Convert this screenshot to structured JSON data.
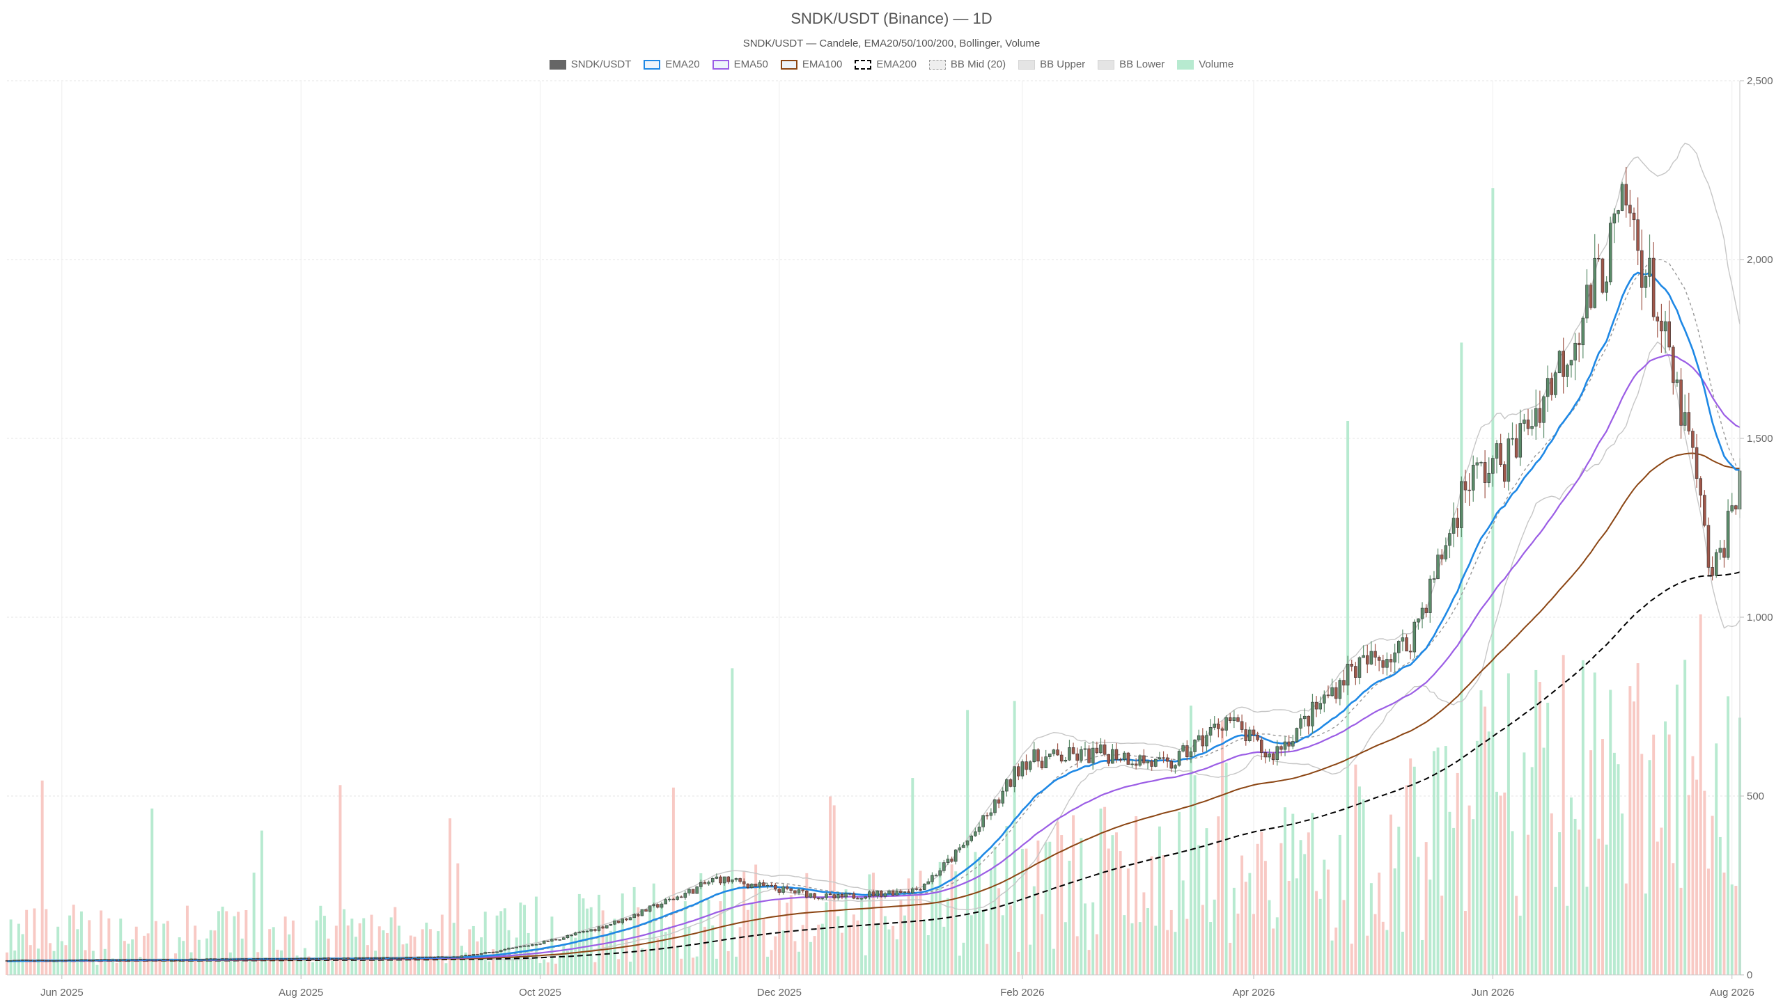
{
  "chart_data": {
    "type": "candlestick",
    "title": "SNDK/USDT (Binance) — 1D",
    "subtitle": "SNDK/USDT — Candele, EMA20/50/100/200, Bollinger, Volume",
    "legend": [
      {
        "label": "SNDK/USDT",
        "color": "#666666",
        "style": "solid-fill"
      },
      {
        "label": "EMA20",
        "color": "#1e88e5",
        "style": "line"
      },
      {
        "label": "EMA50",
        "color": "#9b5de5",
        "style": "line"
      },
      {
        "label": "EMA100",
        "color": "#8b4513",
        "style": "line"
      },
      {
        "label": "EMA200",
        "color": "#000000",
        "style": "dashed"
      },
      {
        "label": "BB Mid (20)",
        "color": "#999999",
        "style": "dotted"
      },
      {
        "label": "BB Upper",
        "color": "#bbbbbb",
        "style": "band"
      },
      {
        "label": "BB Lower",
        "color": "#bbbbbb",
        "style": "band"
      },
      {
        "label": "Volume",
        "color": "#b7ead0",
        "style": "fill"
      }
    ],
    "legend_placement": "top-center",
    "grid": true,
    "x_range": [
      "2025-05-18",
      "2026-08-03"
    ],
    "x_ticks": [
      {
        "date": "2025-06-01",
        "label": "Jun 2025"
      },
      {
        "date": "2025-08-01",
        "label": "Aug 2025"
      },
      {
        "date": "2025-10-01",
        "label": "Oct 2025"
      },
      {
        "date": "2025-12-01",
        "label": "Dec 2025"
      },
      {
        "date": "2026-02-01",
        "label": "Feb 2026"
      },
      {
        "date": "2026-04-01",
        "label": "Apr 2026"
      },
      {
        "date": "2026-06-01",
        "label": "Jun 2026"
      },
      {
        "date": "2026-08-01",
        "label": "Aug 2026"
      }
    ],
    "y_axis": {
      "position": "right",
      "ylim": [
        0,
        2500
      ],
      "ticks": [
        0,
        500,
        1000,
        1500,
        2000,
        2500
      ],
      "tick_labels": [
        "0",
        "500",
        "1,000",
        "1,500",
        "2,000",
        "2,500"
      ]
    },
    "colors": {
      "up": "#5b8c6a",
      "down": "#a0574a",
      "volume_up": "#b7ead0",
      "volume_down": "#f8c9c4",
      "ema20": "#1e88e5",
      "ema50": "#9b5de5",
      "ema100": "#8b4513",
      "ema200": "#000000",
      "bb_mid": "#999999",
      "bb_band": "#c6c6c6"
    },
    "price_keypoints": [
      {
        "date": "2025-05-18",
        "close": 40
      },
      {
        "date": "2025-08-01",
        "close": 45
      },
      {
        "date": "2025-09-10",
        "close": 50
      },
      {
        "date": "2025-10-01",
        "close": 90
      },
      {
        "date": "2025-11-01",
        "close": 200
      },
      {
        "date": "2025-11-15",
        "close": 270
      },
      {
        "date": "2025-12-15",
        "close": 215
      },
      {
        "date": "2026-01-05",
        "close": 240
      },
      {
        "date": "2026-01-20",
        "close": 400
      },
      {
        "date": "2026-02-01",
        "close": 600
      },
      {
        "date": "2026-02-25",
        "close": 620
      },
      {
        "date": "2026-03-10",
        "close": 580
      },
      {
        "date": "2026-03-25",
        "close": 720
      },
      {
        "date": "2026-04-05",
        "close": 610
      },
      {
        "date": "2026-04-25",
        "close": 850
      },
      {
        "date": "2026-05-10",
        "close": 920
      },
      {
        "date": "2026-05-25",
        "close": 1380
      },
      {
        "date": "2026-06-05",
        "close": 1450
      },
      {
        "date": "2026-06-20",
        "close": 1750
      },
      {
        "date": "2026-07-05",
        "close": 2150
      },
      {
        "date": "2026-07-12",
        "close": 1900
      },
      {
        "date": "2026-07-22",
        "close": 1450
      },
      {
        "date": "2026-07-27",
        "close": 1100
      },
      {
        "date": "2026-08-03",
        "close": 1400
      }
    ]
  }
}
